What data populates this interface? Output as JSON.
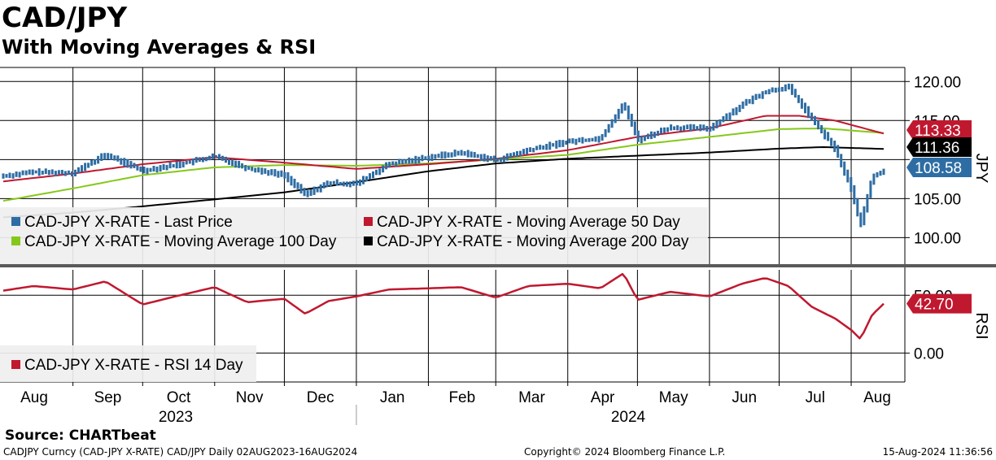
{
  "header": {
    "title": "CAD/JPY",
    "subtitle": "With Moving Averages & RSI"
  },
  "footer": {
    "source": "Source: CHARTbeat",
    "info": "CADJPY Curncy (CAD-JPY X-RATE) CAD/JPY  Daily 02AUG2023-16AUG2024",
    "copyright": "Copyright© 2024 Bloomberg Finance L.P.",
    "timestamp": "15-Aug-2024 11:36:56"
  },
  "colors": {
    "price": "#2e6da4",
    "ma50": "#c0182f",
    "ma100": "#86c81a",
    "ma200": "#000000",
    "rsi": "#c0182f"
  },
  "chart_data": [
    {
      "type": "line",
      "panel": "price",
      "axis_label": "JPY",
      "yticks": [
        "120.00",
        "115.00",
        "105.00",
        "100.00"
      ],
      "ylim": [
        96.6,
        121.8
      ],
      "months": [
        "Aug",
        "Sep",
        "Oct",
        "Nov",
        "Dec",
        "Jan",
        "Feb",
        "Mar",
        "Apr",
        "May",
        "Jun",
        "Jul",
        "Aug"
      ],
      "years": [
        "2023",
        "2024"
      ],
      "last_values": [
        {
          "series": "ma50",
          "label": "113.33",
          "value": 113.33
        },
        {
          "series": "ma200",
          "label": "111.36",
          "value": 111.36
        },
        {
          "series": "price",
          "label": "108.58",
          "value": 108.58
        }
      ],
      "legend": [
        {
          "series": "price",
          "label": "CAD-JPY X-RATE - Last Price"
        },
        {
          "series": "ma50",
          "label": "CAD-JPY X-RATE - Moving Average 50 Day"
        },
        {
          "series": "ma100",
          "label": "CAD-JPY X-RATE - Moving Average 100 Day"
        },
        {
          "series": "ma200",
          "label": "CAD-JPY X-RATE - Moving Average 200 Day"
        }
      ],
      "series": {
        "price": {
          "dates": [
            "2023-08-02",
            "2023-08-15",
            "2023-09-01",
            "2023-09-15",
            "2023-10-01",
            "2023-10-15",
            "2023-11-01",
            "2023-11-15",
            "2023-12-01",
            "2023-12-10",
            "2023-12-20",
            "2024-01-01",
            "2024-01-15",
            "2024-02-01",
            "2024-02-15",
            "2024-03-01",
            "2024-03-15",
            "2024-04-01",
            "2024-04-15",
            "2024-04-25",
            "2024-05-01",
            "2024-05-15",
            "2024-06-01",
            "2024-06-15",
            "2024-06-25",
            "2024-07-05",
            "2024-07-15",
            "2024-07-25",
            "2024-08-01",
            "2024-08-05",
            "2024-08-10",
            "2024-08-15"
          ],
          "values": [
            107.9,
            108.4,
            108.3,
            110.6,
            108.6,
            109.3,
            110.4,
            108.9,
            108.0,
            105.5,
            107.0,
            106.9,
            109.4,
            110.3,
            110.9,
            109.9,
            111.2,
            112.3,
            112.7,
            117.2,
            112.5,
            114.1,
            114.0,
            117.0,
            118.7,
            119.3,
            115.2,
            111.4,
            106.2,
            101.6,
            107.8,
            108.58
          ]
        },
        "ma50": {
          "dates": [
            "2023-08-02",
            "2023-09-01",
            "2023-10-01",
            "2023-11-01",
            "2023-12-01",
            "2024-01-01",
            "2024-02-01",
            "2024-03-01",
            "2024-04-01",
            "2024-05-01",
            "2024-06-01",
            "2024-06-25",
            "2024-07-10",
            "2024-07-25",
            "2024-08-15"
          ],
          "values": [
            107.2,
            108.2,
            109.4,
            110.3,
            109.6,
            108.8,
            109.4,
            110.1,
            111.2,
            112.9,
            114.0,
            115.6,
            115.6,
            115.0,
            113.33
          ]
        },
        "ma100": {
          "dates": [
            "2023-08-02",
            "2023-09-01",
            "2023-10-01",
            "2023-11-01",
            "2023-12-01",
            "2024-01-01",
            "2024-02-01",
            "2024-03-01",
            "2024-04-01",
            "2024-05-01",
            "2024-06-01",
            "2024-07-01",
            "2024-07-20",
            "2024-08-15"
          ],
          "values": [
            104.7,
            106.3,
            108.0,
            109.0,
            109.3,
            109.2,
            109.5,
            110.0,
            110.6,
            111.9,
            112.9,
            113.9,
            114.0,
            113.4
          ]
        },
        "ma200": {
          "dates": [
            "2023-08-02",
            "2023-09-01",
            "2023-10-01",
            "2023-11-01",
            "2023-12-01",
            "2024-01-01",
            "2024-02-01",
            "2024-03-01",
            "2024-04-01",
            "2024-05-01",
            "2024-06-01",
            "2024-07-01",
            "2024-07-20",
            "2024-08-15"
          ],
          "values": [
            102.6,
            103.2,
            104.0,
            104.9,
            105.8,
            107.1,
            108.5,
            109.5,
            110.1,
            110.5,
            110.9,
            111.4,
            111.6,
            111.36
          ]
        }
      }
    },
    {
      "type": "line",
      "panel": "rsi",
      "axis_label": "RSI",
      "yticks": [
        "50.00",
        "0.00"
      ],
      "ylim": [
        -25,
        72
      ],
      "last_values": [
        {
          "series": "rsi",
          "label": "42.70",
          "value": 42.7
        }
      ],
      "legend": [
        {
          "series": "rsi",
          "label": "CAD-JPY X-RATE - RSI 14 Day"
        }
      ],
      "series": {
        "rsi": {
          "dates": [
            "2023-08-02",
            "2023-08-15",
            "2023-09-01",
            "2023-09-15",
            "2023-10-01",
            "2023-10-15",
            "2023-11-01",
            "2023-11-15",
            "2023-12-01",
            "2023-12-10",
            "2023-12-20",
            "2024-01-01",
            "2024-01-15",
            "2024-02-01",
            "2024-02-15",
            "2024-03-01",
            "2024-03-15",
            "2024-04-01",
            "2024-04-15",
            "2024-04-25",
            "2024-05-01",
            "2024-05-15",
            "2024-06-01",
            "2024-06-15",
            "2024-06-25",
            "2024-07-05",
            "2024-07-15",
            "2024-07-25",
            "2024-08-01",
            "2024-08-05",
            "2024-08-10",
            "2024-08-15"
          ],
          "values": [
            54,
            58,
            55,
            62,
            42,
            49,
            57,
            44,
            47,
            34,
            45,
            49,
            55,
            56,
            57,
            48,
            58,
            60,
            56,
            69,
            46,
            53,
            49,
            60,
            65,
            58,
            40,
            30,
            20,
            12,
            33,
            42.7
          ]
        }
      }
    }
  ]
}
